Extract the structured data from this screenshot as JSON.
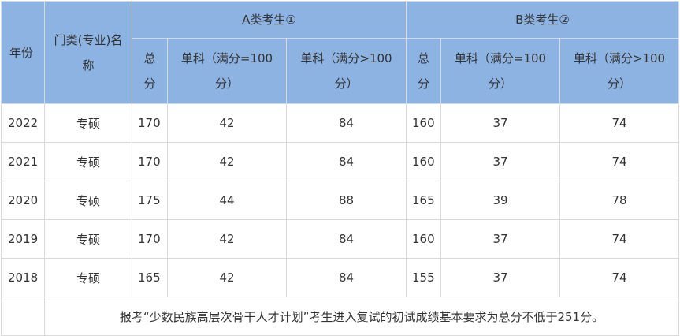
{
  "header": {
    "year": "年份",
    "major": "门类(专业)名称",
    "group_a": "A类考生①",
    "group_b": "B类考生②",
    "total": "总分",
    "single_eq100": "单科（满分=100分）",
    "single_gt100": "单科（满分>100分）"
  },
  "rows": [
    {
      "year": "2022",
      "major": "专硕",
      "a_total": "170",
      "a_s1": "42",
      "a_s2": "84",
      "b_total": "160",
      "b_s1": "37",
      "b_s2": "74"
    },
    {
      "year": "2021",
      "major": "专硕",
      "a_total": "170",
      "a_s1": "42",
      "a_s2": "84",
      "b_total": "160",
      "b_s1": "37",
      "b_s2": "74"
    },
    {
      "year": "2020",
      "major": "专硕",
      "a_total": "175",
      "a_s1": "44",
      "a_s2": "88",
      "b_total": "165",
      "b_s1": "39",
      "b_s2": "78"
    },
    {
      "year": "2019",
      "major": "专硕",
      "a_total": "170",
      "a_s1": "42",
      "a_s2": "84",
      "b_total": "160",
      "b_s1": "37",
      "b_s2": "74"
    },
    {
      "year": "2018",
      "major": "专硕",
      "a_total": "165",
      "a_s1": "42",
      "a_s2": "84",
      "b_total": "155",
      "b_s1": "37",
      "b_s2": "74"
    }
  ],
  "footnote": "报考“少数民族高层次骨干人才计划”考生进入复试的初试成绩基本要求为总分不低于251分。",
  "colors": {
    "header_bg": "#8db3e2",
    "border": "#d9d9d9"
  }
}
